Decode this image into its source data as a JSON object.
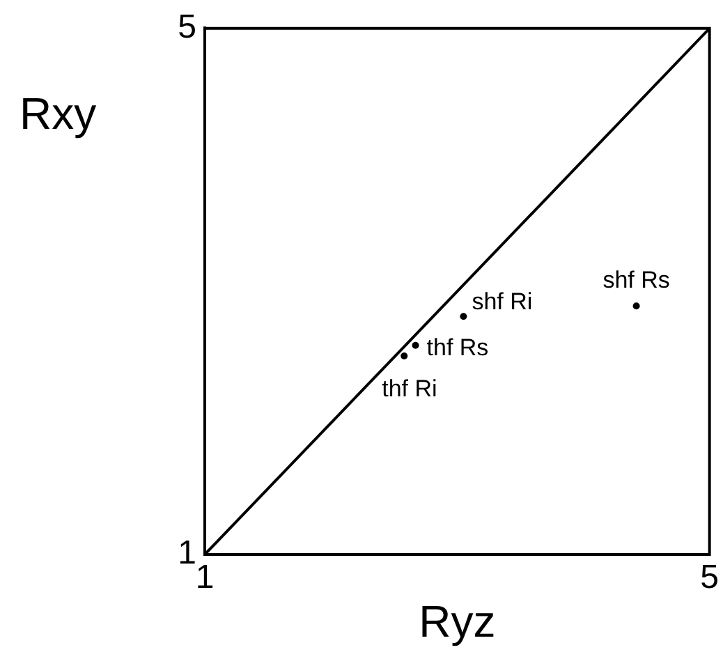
{
  "chart_data": {
    "type": "scatter",
    "xlabel": "Ryz",
    "ylabel": "Rxy",
    "xlim": [
      1,
      5
    ],
    "ylim": [
      1,
      5
    ],
    "xticks": [
      1,
      5
    ],
    "yticks": [
      1,
      5
    ],
    "marker": "circle",
    "series": [
      {
        "type": "line",
        "color": "#000000",
        "x": [
          1,
          5
        ],
        "values": [
          1,
          5
        ],
        "marker": "none"
      },
      {
        "name": "shf Rs",
        "color": "#000000",
        "x": [
          4.42
        ],
        "values": [
          2.89
        ]
      },
      {
        "name": "shf Ri",
        "color": "#000000",
        "x": [
          3.05
        ],
        "values": [
          2.81
        ]
      },
      {
        "name": "thf Rs",
        "color": "#000000",
        "x": [
          2.67
        ],
        "values": [
          2.59
        ]
      },
      {
        "name": "thf Ri",
        "color": "#000000",
        "x": [
          2.58
        ],
        "values": [
          2.51
        ]
      }
    ]
  }
}
